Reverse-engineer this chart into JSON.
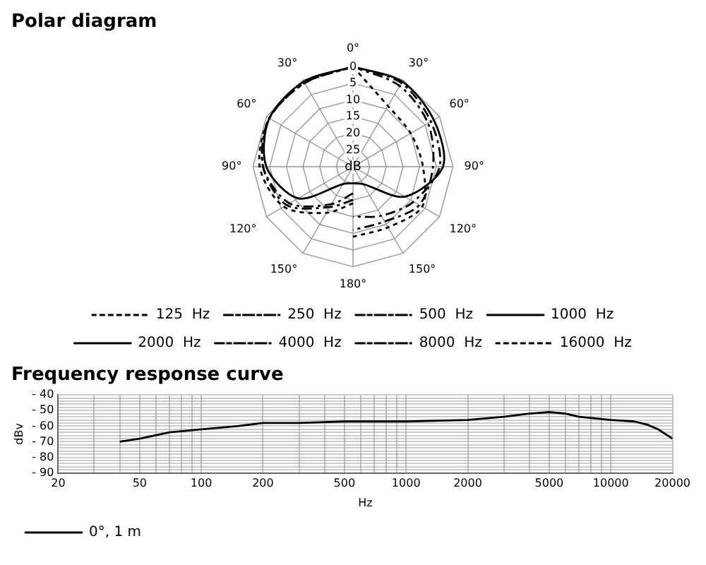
{
  "chart_data": [
    {
      "type": "radar",
      "title": "Polar diagram",
      "ylabel": "dB",
      "categories": [
        "0°",
        "30°",
        "60°",
        "90°",
        "120°",
        "150°",
        "180°",
        "150°",
        "120°",
        "90°",
        "60°",
        "30°"
      ],
      "ylim": [
        30,
        0
      ],
      "yticks": [
        0,
        5,
        10,
        15,
        20,
        25
      ],
      "grid": true,
      "legend": "bottom",
      "marker": "none",
      "series": [
        {
          "name": "125  Hz",
          "color": "#000000",
          "line_style": "dotted",
          "values": [
            0,
            null,
            null,
            null,
            null,
            null,
            19,
            14,
            6,
            2,
            1,
            1
          ]
        },
        {
          "name": "250  Hz",
          "color": "#000000",
          "line_style": "dashed",
          "values": [
            0,
            null,
            null,
            null,
            null,
            null,
            20,
            16,
            7,
            3,
            1,
            1
          ]
        },
        {
          "name": "500  Hz",
          "color": "#000000",
          "line_style": "dashed",
          "values": [
            0,
            null,
            null,
            null,
            null,
            null,
            22,
            17,
            8,
            3,
            1,
            1
          ]
        },
        {
          "name": "1000  Hz",
          "color": "#000000",
          "line_style": "solid",
          "values": [
            0,
            null,
            null,
            null,
            null,
            null,
            25,
            24,
            11,
            4,
            1,
            0.5
          ]
        },
        {
          "name": "2000  Hz",
          "color": "#000000",
          "line_style": "solid",
          "values": [
            0,
            0.5,
            2,
            3,
            12,
            24,
            25,
            null,
            null,
            null,
            null,
            null
          ]
        },
        {
          "name": "4000  Hz",
          "color": "#000000",
          "line_style": "dashed",
          "values": [
            0,
            1,
            3,
            4,
            9,
            13,
            15,
            null,
            null,
            null,
            null,
            null
          ]
        },
        {
          "name": "8000  Hz",
          "color": "#000000",
          "line_style": "dashed",
          "values": [
            0,
            2,
            4,
            6,
            7,
            11,
            11,
            null,
            null,
            null,
            null,
            null
          ]
        },
        {
          "name": "16000  Hz",
          "color": "#000000",
          "line_style": "dotted",
          "values": [
            0,
            9,
            10,
            9,
            6,
            9,
            9,
            null,
            null,
            null,
            null,
            null
          ]
        }
      ]
    },
    {
      "type": "line",
      "title": "Frequency response curve",
      "xlabel": "Hz",
      "ylabel": "dBv",
      "log": "x",
      "xlim": [
        20,
        20000
      ],
      "xticks": [
        20,
        {
          "value": 30,
          "label": null
        },
        {
          "value": 40,
          "label": null
        },
        50,
        {
          "value": 60,
          "label": null
        },
        {
          "value": 70,
          "label": null
        },
        {
          "value": 80,
          "label": null
        },
        {
          "value": 90,
          "label": null
        },
        100,
        200,
        {
          "value": 300,
          "label": null
        },
        {
          "value": 400,
          "label": null
        },
        500,
        {
          "value": 600,
          "label": null
        },
        {
          "value": 700,
          "label": null
        },
        {
          "value": 800,
          "label": null
        },
        {
          "value": 900,
          "label": null
        },
        1000,
        2000,
        {
          "value": 3000,
          "label": null
        },
        {
          "value": 4000,
          "label": null
        },
        5000,
        {
          "value": 6000,
          "label": null
        },
        {
          "value": 7000,
          "label": null
        },
        {
          "value": 8000,
          "label": null
        },
        {
          "value": 9000,
          "label": null
        },
        10000,
        20000
      ],
      "ylim": [
        -90,
        -40
      ],
      "yticks": [
        {
          "value": -90,
          "label": "- 90"
        },
        {
          "value": -88,
          "label": null
        },
        {
          "value": -86,
          "label": null
        },
        {
          "value": -84,
          "label": null
        },
        {
          "value": -82,
          "label": null
        },
        {
          "value": -80,
          "label": "- 80"
        },
        {
          "value": -78,
          "label": null
        },
        {
          "value": -76,
          "label": null
        },
        {
          "value": -74,
          "label": null
        },
        {
          "value": -72,
          "label": null
        },
        {
          "value": -70,
          "label": "- 70"
        },
        {
          "value": -68,
          "label": null
        },
        {
          "value": -66,
          "label": null
        },
        {
          "value": -64,
          "label": null
        },
        {
          "value": -62,
          "label": null
        },
        {
          "value": -60,
          "label": "- 60"
        },
        {
          "value": -58,
          "label": null
        },
        {
          "value": -56,
          "label": null
        },
        {
          "value": -54,
          "label": null
        },
        {
          "value": -52,
          "label": null
        },
        {
          "value": -50,
          "label": "- 50"
        },
        {
          "value": -48,
          "label": null
        },
        {
          "value": -46,
          "label": null
        },
        {
          "value": -44,
          "label": null
        },
        {
          "value": -42,
          "label": null
        },
        {
          "value": -40,
          "label": "- 40"
        }
      ],
      "grid": true,
      "legend": "bottom left",
      "marker": "none",
      "series": [
        {
          "name": "0°, 1 m",
          "color": "#000000",
          "line_style": "solid",
          "x": [
            40,
            50,
            70,
            100,
            150,
            200,
            300,
            500,
            1000,
            2000,
            3000,
            4000,
            5000,
            6000,
            7000,
            10000,
            13000,
            15000,
            17000,
            20000
          ],
          "values": [
            -70,
            -68,
            -64,
            -62,
            -60,
            -58,
            -58,
            -57,
            -57,
            -56,
            -54,
            -52,
            -51,
            -52,
            -54,
            -56,
            -57,
            -59,
            -62,
            -68
          ]
        }
      ]
    }
  ]
}
